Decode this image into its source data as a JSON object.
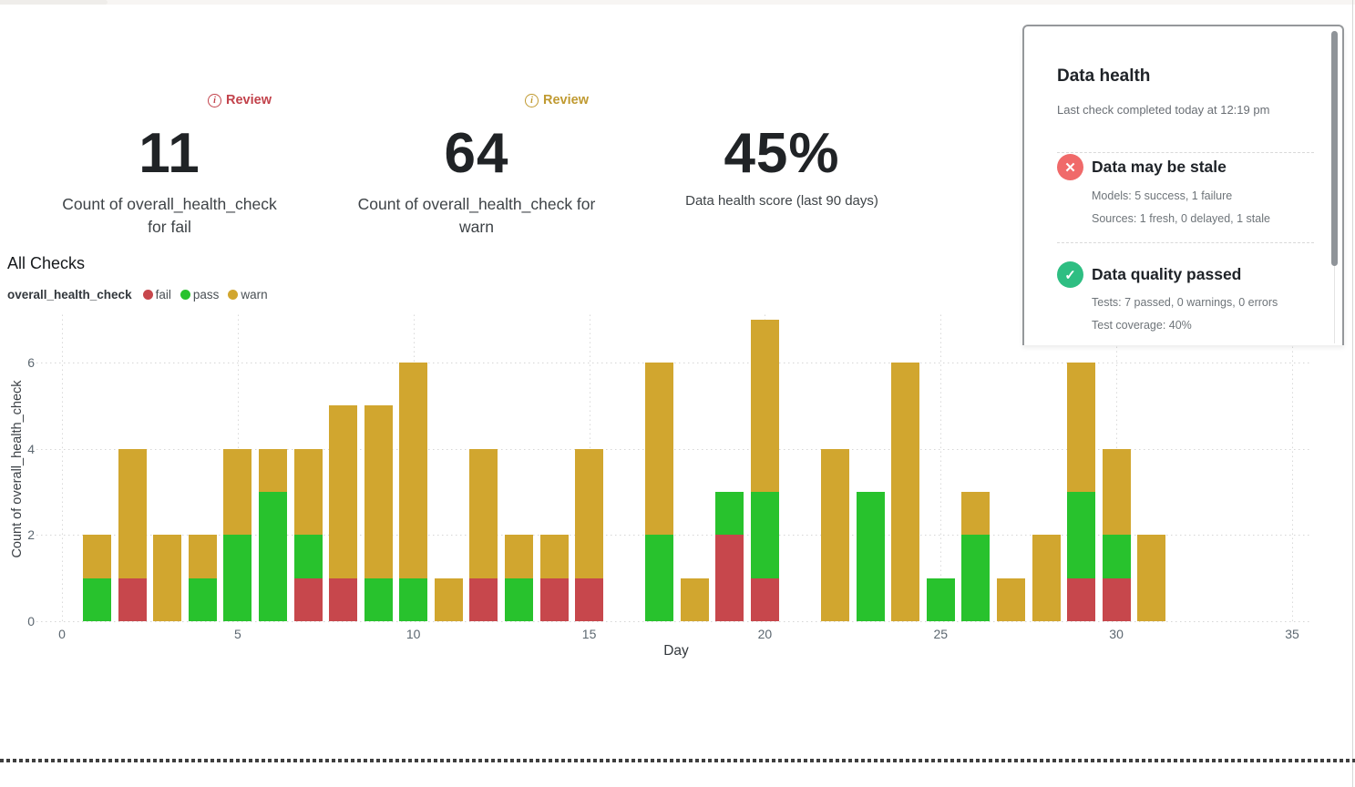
{
  "metrics": [
    {
      "review_label": "Review",
      "accent": "#C2424B",
      "value": "11",
      "label": "Count of overall_health_check for fail"
    },
    {
      "review_label": "Review",
      "accent": "#C09A31",
      "value": "64",
      "label": "Count of overall_health_check for warn"
    },
    {
      "value": "45%",
      "label": "Data health score (last 90 days)"
    }
  ],
  "health_panel": {
    "title": "Data health",
    "subtitle": "Last check completed today at 12:19 pm",
    "items": [
      {
        "icon": "x-circle",
        "icon_color": "#F06A6A",
        "icon_glyph": "✕",
        "title": "Data may be stale",
        "lines": [
          "Models: 5 success, 1 failure",
          "Sources: 1 fresh, 0 delayed, 1 stale"
        ]
      },
      {
        "icon": "check-circle",
        "icon_color": "#2EBE82",
        "icon_glyph": "✓",
        "title": "Data quality passed",
        "lines": [
          "Tests: 7 passed, 0 warnings, 0 errors",
          "Test coverage: 40%"
        ]
      }
    ]
  },
  "chart": {
    "section_title": "All Checks",
    "legend_group": "overall_health_check",
    "legend": [
      {
        "label": "fail",
        "color": "#C7474C"
      },
      {
        "label": "pass",
        "color": "#28C22D"
      },
      {
        "label": "warn",
        "color": "#D1A62F"
      }
    ]
  },
  "chart_data": {
    "type": "bar",
    "stacked": true,
    "title": "All Checks",
    "xlabel": "Day",
    "ylabel": "Count of overall_health_check",
    "x_ticks": [
      0,
      5,
      10,
      15,
      20,
      25,
      30,
      35
    ],
    "y_ticks": [
      0,
      2,
      4,
      6
    ],
    "xlim": [
      0,
      36.5
    ],
    "ylim": [
      0,
      7.1
    ],
    "grid": "dotted",
    "x": [
      1,
      2,
      3,
      4,
      5,
      6,
      7,
      8,
      9,
      10,
      11,
      12,
      13,
      14,
      15,
      16,
      17,
      18,
      19,
      20,
      21,
      22,
      23,
      24,
      25,
      26,
      27,
      28,
      29,
      30,
      31
    ],
    "series": [
      {
        "name": "fail",
        "color": "#C7474C",
        "values": [
          0,
          1,
          0,
          0,
          0,
          0,
          1,
          1,
          0,
          0,
          0,
          1,
          0,
          1,
          1,
          0,
          0,
          0,
          2,
          1,
          0,
          0,
          0,
          0,
          0,
          0,
          0,
          0,
          1,
          1,
          0
        ]
      },
      {
        "name": "pass",
        "color": "#28C22D",
        "values": [
          1,
          0,
          0,
          1,
          2,
          3,
          1,
          0,
          1,
          1,
          0,
          0,
          1,
          0,
          0,
          0,
          2,
          0,
          1,
          2,
          0,
          0,
          3,
          0,
          1,
          2,
          0,
          0,
          2,
          1,
          0
        ]
      },
      {
        "name": "warn",
        "color": "#D1A62F",
        "values": [
          1,
          3,
          2,
          1,
          2,
          1,
          2,
          4,
          4,
          5,
          1,
          3,
          1,
          1,
          3,
          0,
          4,
          1,
          0,
          4,
          0,
          4,
          0,
          6,
          0,
          1,
          1,
          2,
          3,
          2,
          2
        ]
      }
    ],
    "totals_note": {
      "fail_total": 11,
      "warn_total": 64
    }
  }
}
